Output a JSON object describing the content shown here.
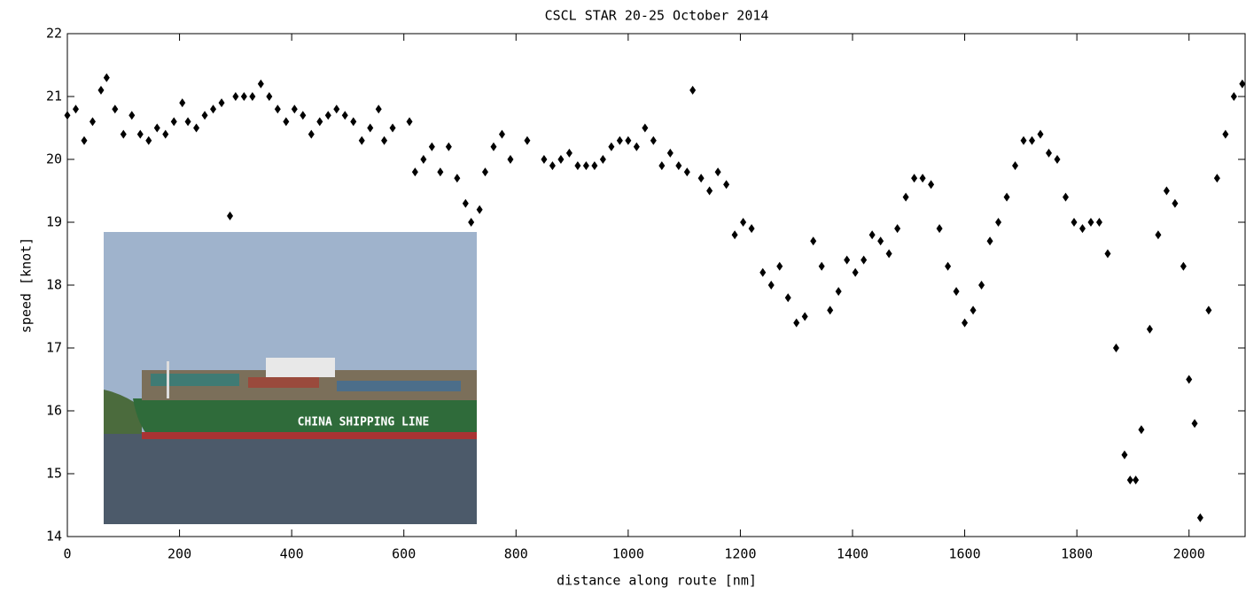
{
  "chart_data": {
    "type": "scatter",
    "title": "CSCL STAR 20-25 October 2014",
    "x_label": "distance along route [nm]",
    "y_label": "speed [knot]",
    "annotation": "CHINA SHIPPING LINE",
    "color": "#000000",
    "xlim": [
      0,
      2100
    ],
    "ylim": [
      14,
      22
    ],
    "xticks": [
      0,
      200,
      400,
      600,
      800,
      1000,
      1200,
      1400,
      1600,
      1800,
      2000
    ],
    "yticks": [
      14,
      15,
      16,
      17,
      18,
      19,
      20,
      21,
      22
    ],
    "x": [
      0,
      15,
      30,
      45,
      60,
      70,
      85,
      100,
      115,
      130,
      145,
      160,
      175,
      190,
      205,
      215,
      230,
      245,
      260,
      275,
      290,
      300,
      315,
      330,
      345,
      360,
      375,
      390,
      405,
      420,
      435,
      450,
      465,
      480,
      495,
      510,
      525,
      540,
      555,
      565,
      580,
      610,
      620,
      635,
      650,
      665,
      680,
      695,
      710,
      720,
      735,
      745,
      760,
      775,
      790,
      820,
      850,
      865,
      880,
      895,
      910,
      925,
      940,
      955,
      970,
      985,
      1000,
      1015,
      1030,
      1045,
      1060,
      1075,
      1090,
      1105,
      1115,
      1130,
      1145,
      1160,
      1175,
      1190,
      1205,
      1220,
      1240,
      1255,
      1270,
      1285,
      1300,
      1315,
      1330,
      1345,
      1360,
      1375,
      1390,
      1405,
      1420,
      1435,
      1450,
      1465,
      1480,
      1495,
      1510,
      1525,
      1540,
      1555,
      1570,
      1585,
      1600,
      1615,
      1630,
      1645,
      1660,
      1675,
      1690,
      1705,
      1720,
      1735,
      1750,
      1765,
      1780,
      1795,
      1810,
      1825,
      1840,
      1855,
      1870,
      1885,
      1895,
      1905,
      1915,
      1930,
      1945,
      1960,
      1975,
      1990,
      2000,
      2010,
      2020,
      2035,
      2050,
      2065,
      2080,
      2095
    ],
    "values": [
      20.7,
      20.8,
      20.3,
      20.6,
      21.1,
      21.3,
      20.8,
      20.4,
      20.7,
      20.4,
      20.3,
      20.5,
      20.4,
      20.6,
      20.9,
      20.6,
      20.5,
      20.7,
      20.8,
      20.9,
      19.1,
      21.0,
      21.0,
      21.0,
      21.2,
      21.0,
      20.8,
      20.6,
      20.8,
      20.7,
      20.4,
      20.6,
      20.7,
      20.8,
      20.7,
      20.6,
      20.3,
      20.5,
      20.8,
      20.3,
      20.5,
      20.6,
      19.8,
      20.0,
      20.2,
      19.8,
      20.2,
      19.7,
      19.3,
      19.0,
      19.2,
      19.8,
      20.2,
      20.4,
      20.0,
      20.3,
      20.0,
      19.9,
      20.0,
      20.1,
      19.9,
      19.9,
      19.9,
      20.0,
      20.2,
      20.3,
      20.3,
      20.2,
      20.5,
      20.3,
      19.9,
      20.1,
      19.9,
      19.8,
      21.1,
      19.7,
      19.5,
      19.8,
      19.6,
      18.8,
      19.0,
      18.9,
      18.2,
      18.0,
      18.3,
      17.8,
      17.4,
      17.5,
      18.7,
      18.3,
      17.6,
      17.9,
      18.4,
      18.2,
      18.4,
      18.8,
      18.7,
      18.5,
      18.9,
      19.4,
      19.7,
      19.7,
      19.6,
      18.9,
      18.3,
      17.9,
      17.4,
      17.6,
      18.0,
      18.7,
      19.0,
      19.4,
      19.9,
      20.3,
      20.3,
      20.4,
      20.1,
      20.0,
      19.4,
      19.0,
      18.9,
      19.0,
      19.0,
      18.5,
      17.0,
      15.3,
      14.9,
      14.9,
      15.7,
      17.3,
      18.8,
      19.5,
      19.3,
      18.3,
      16.5,
      15.8,
      14.3,
      17.6,
      19.7,
      20.4,
      21.0,
      21.2
    ]
  }
}
